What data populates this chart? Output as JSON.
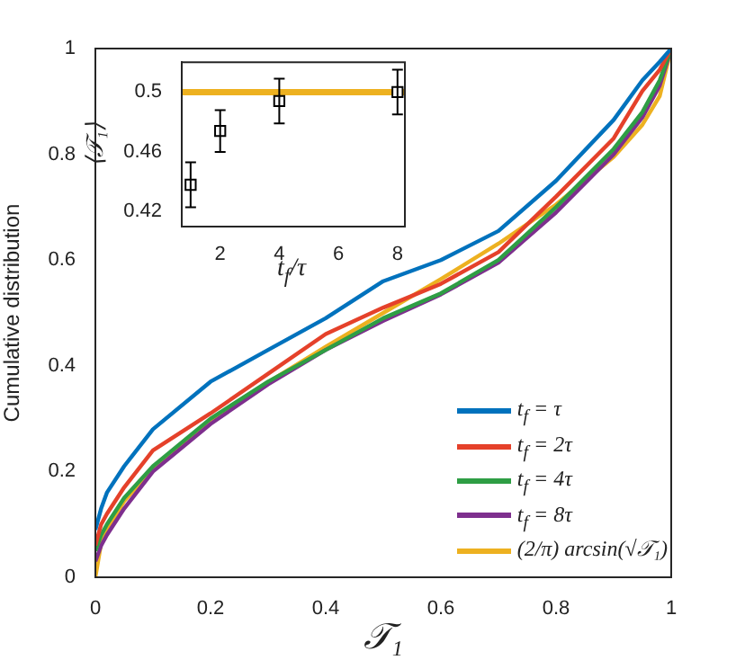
{
  "chart_data": [
    {
      "type": "line",
      "xlabel": "𝒯₁",
      "ylabel": "Cumulative distribution",
      "x": [
        0,
        0.01,
        0.02,
        0.05,
        0.1,
        0.2,
        0.3,
        0.4,
        0.5,
        0.6,
        0.7,
        0.8,
        0.9,
        0.95,
        0.98,
        1
      ],
      "series": [
        {
          "name": "t$_{f}$ = τ",
          "color": "#0072bd",
          "values": [
            0.09,
            0.13,
            0.16,
            0.21,
            0.28,
            0.37,
            0.43,
            0.49,
            0.56,
            0.6,
            0.655,
            0.75,
            0.865,
            0.94,
            0.975,
            1
          ]
        },
        {
          "name": "t$_{f}$ = 2τ",
          "color": "#e5412a",
          "values": [
            0.06,
            0.1,
            0.12,
            0.17,
            0.24,
            0.31,
            0.385,
            0.46,
            0.51,
            0.555,
            0.615,
            0.72,
            0.83,
            0.92,
            0.96,
            1
          ]
        },
        {
          "name": "t$_{f}$ = 4τ",
          "color": "#2e9e44",
          "values": [
            0.05,
            0.08,
            0.1,
            0.15,
            0.21,
            0.3,
            0.37,
            0.43,
            0.49,
            0.537,
            0.6,
            0.7,
            0.81,
            0.88,
            0.94,
            1
          ]
        },
        {
          "name": "t$_{f}$ = 8τ",
          "color": "#7e2f8e",
          "values": [
            0.03,
            0.06,
            0.08,
            0.13,
            0.2,
            0.29,
            0.365,
            0.43,
            0.485,
            0.535,
            0.595,
            0.69,
            0.8,
            0.87,
            0.93,
            1
          ]
        },
        {
          "name": "(2/π) arcsin(√𝒯₁)",
          "color": "#edb120",
          "values": [
            0,
            0.064,
            0.09,
            0.144,
            0.205,
            0.295,
            0.369,
            0.436,
            0.5,
            0.564,
            0.631,
            0.705,
            0.795,
            0.856,
            0.91,
            1
          ]
        }
      ],
      "xlim": [
        0,
        1
      ],
      "ylim": [
        0,
        1
      ],
      "xticks": [
        0,
        0.2,
        0.4,
        0.6,
        0.8,
        1
      ],
      "yticks": [
        0,
        0.2,
        0.4,
        0.6,
        0.8,
        1
      ],
      "legend": "bottom right"
    },
    {
      "type": "scatter",
      "xlabel": "t$_{f}$/τ",
      "ylabel": "⟨𝒯₁⟩",
      "x": [
        1,
        2,
        4,
        8
      ],
      "values": [
        0.438,
        0.474,
        0.494,
        0.5
      ],
      "errors": [
        0.015,
        0.014,
        0.015,
        0.015
      ],
      "color": "#000000",
      "marker": "square",
      "xlim": [
        0.7,
        8.25
      ],
      "ylim": [
        0.41,
        0.52
      ],
      "xticks": [
        2,
        4,
        6,
        8
      ],
      "yticks": [
        0.42,
        0.46,
        0.5
      ],
      "ref_lines": [
        {
          "axis": "y",
          "value": 0.5,
          "color": "#edb120"
        }
      ]
    }
  ]
}
